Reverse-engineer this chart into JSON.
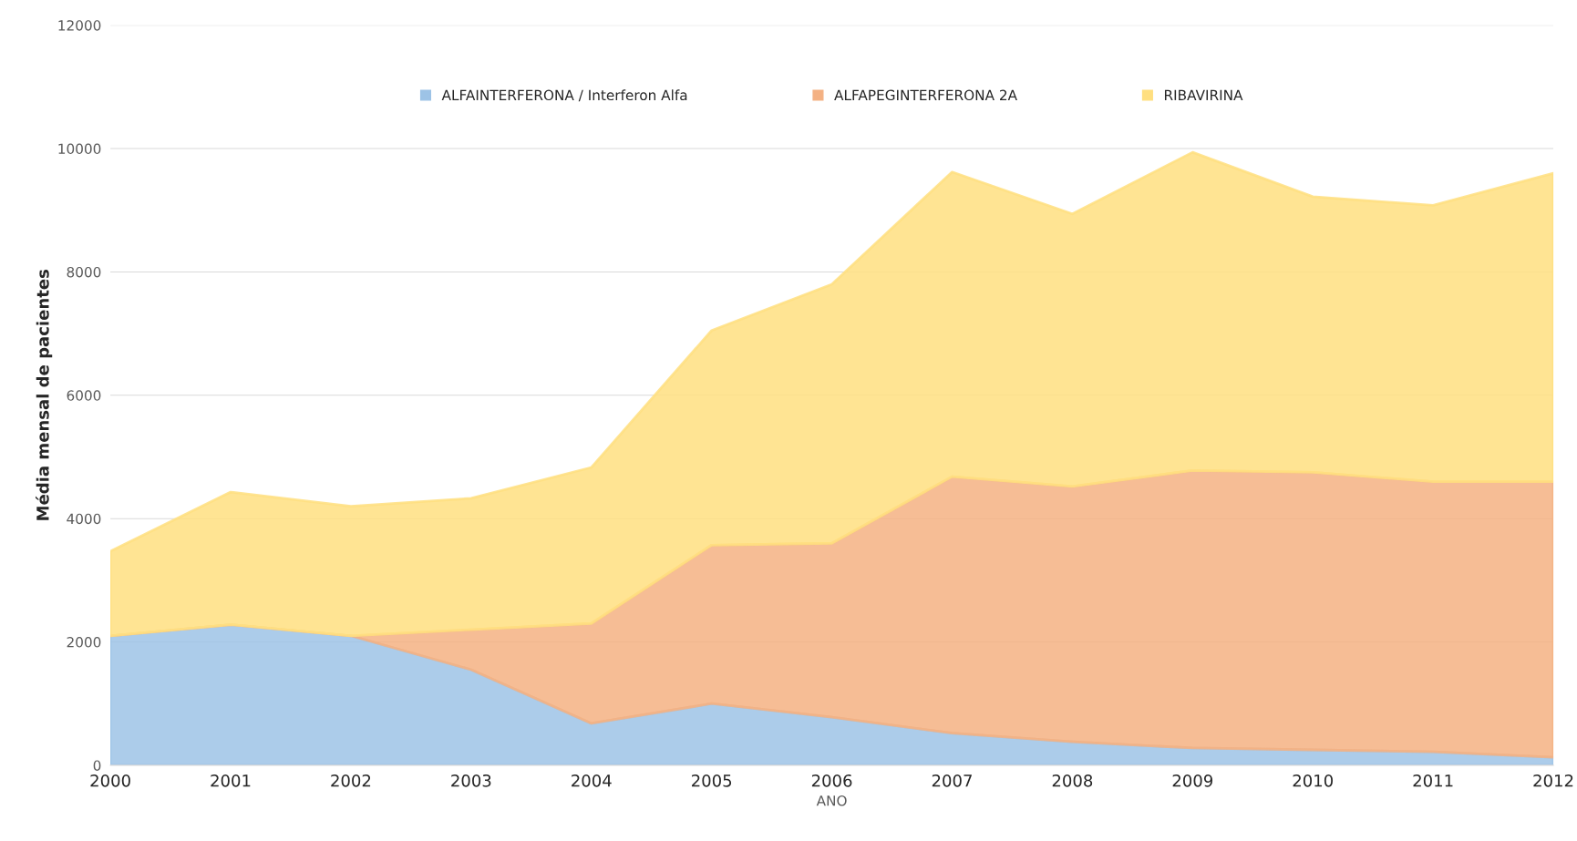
{
  "chart_data": {
    "type": "area",
    "stacked": true,
    "xlabel": "ANO",
    "ylabel": "Média mensal de pacientes",
    "x": [
      2000,
      2001,
      2002,
      2003,
      2004,
      2005,
      2006,
      2007,
      2008,
      2009,
      2010,
      2011,
      2012
    ],
    "series": [
      {
        "name": "ALFAINTERFERONA / Interferon Alfa",
        "color": "#9dc3e6",
        "values": [
          2100,
          2280,
          2100,
          1550,
          680,
          1000,
          780,
          520,
          380,
          280,
          250,
          220,
          130
        ]
      },
      {
        "name": "ALFAPEGINTERFERONA 2A",
        "color": "#f4b183",
        "values": [
          0,
          0,
          0,
          650,
          1620,
          2570,
          2820,
          4160,
          4140,
          4500,
          4500,
          4380,
          4470
        ]
      },
      {
        "name": "RIBAVIRINA",
        "color": "#ffdf80",
        "values": [
          1370,
          2150,
          2100,
          2130,
          2530,
          3480,
          4200,
          4940,
          4420,
          5160,
          4470,
          4480,
          5000
        ]
      }
    ],
    "xlim": [
      2000,
      2012
    ],
    "xticks": [
      2000,
      2001,
      2002,
      2003,
      2004,
      2005,
      2006,
      2007,
      2008,
      2009,
      2010,
      2011,
      2012
    ],
    "ylim": [
      0,
      12000
    ],
    "yticks": [
      0,
      2000,
      4000,
      6000,
      8000,
      10000,
      12000
    ],
    "grid": "y",
    "legend": "top"
  }
}
